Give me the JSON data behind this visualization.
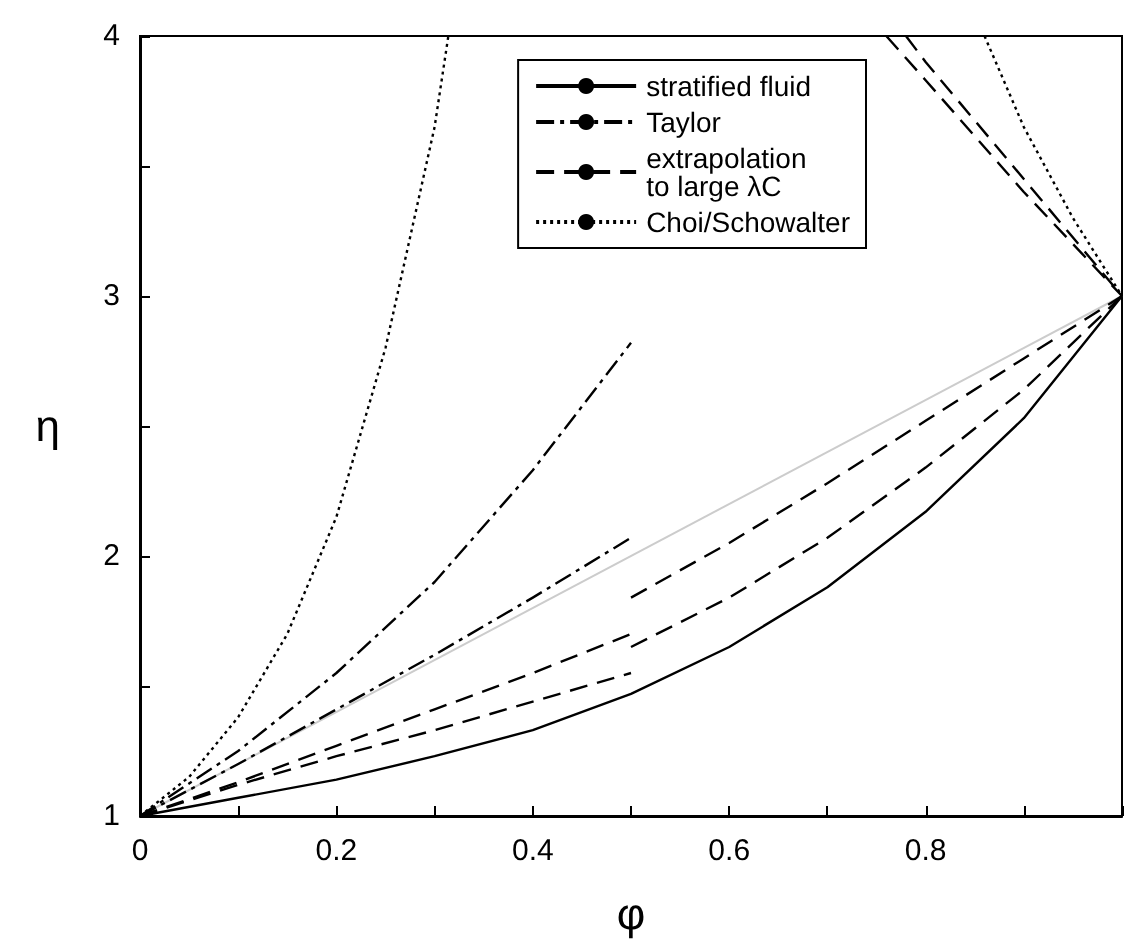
{
  "chart_data": {
    "type": "line",
    "xlabel": "φ",
    "ylabel": "η",
    "xlim": [
      0,
      1
    ],
    "ylim": [
      1,
      4
    ],
    "xticks": [
      0,
      {
        "value": 0.1,
        "label": null
      },
      0.2,
      {
        "value": 0.3,
        "label": null
      },
      0.4,
      {
        "value": 0.5,
        "label": null
      },
      0.6,
      {
        "value": 0.7,
        "label": null
      },
      0.8,
      {
        "value": 0.9,
        "label": null
      },
      {
        "value": 1,
        "label": null
      }
    ],
    "yticks": [
      1,
      {
        "value": 1.5,
        "label": null
      },
      2,
      {
        "value": 2.5,
        "label": null
      },
      3,
      {
        "value": 3.5,
        "label": null
      },
      4
    ],
    "grid": false,
    "legend": "top right",
    "marker": "none",
    "series": [
      {
        "name": "stratified fluid",
        "color": "#000000",
        "line_style": "solid",
        "x": [
          0,
          0.1,
          0.2,
          0.3,
          0.4,
          0.5,
          0.6,
          0.7,
          0.8,
          0.9,
          1
        ],
        "values": [
          1,
          1.07,
          1.14,
          1.23,
          1.33,
          1.47,
          1.65,
          1.88,
          2.17,
          2.53,
          3
        ]
      },
      {
        "name": "Taylor",
        "color": "#000000",
        "line_style": "dashdot",
        "x": [
          0,
          0.1,
          0.2,
          0.3,
          0.4,
          0.5
        ],
        "values": [
          1,
          1.25,
          1.55,
          1.9,
          2.33,
          2.82
        ]
      },
      {
        "color": "#000000",
        "line_style": "dashdot",
        "x": [
          0,
          0.1,
          0.2,
          0.3,
          0.4,
          0.5
        ],
        "values": [
          1,
          1.2,
          1.41,
          1.62,
          1.84,
          2.07
        ]
      },
      {
        "name": "extrapolation\nto large λC",
        "color": "#000000",
        "line_style": "dashed",
        "x": [
          0,
          0.1,
          0.2,
          0.3,
          0.4,
          0.5
        ],
        "values": [
          1,
          1.13,
          1.27,
          1.41,
          1.55,
          1.7
        ]
      },
      {
        "color": "#000000",
        "line_style": "dashed",
        "x": [
          0,
          0.1,
          0.2,
          0.3,
          0.4,
          0.5
        ],
        "values": [
          1,
          1.12,
          1.23,
          1.33,
          1.44,
          1.55
        ]
      },
      {
        "color": "#000000",
        "line_style": "dashed",
        "x": [
          0.5,
          0.6,
          0.7,
          0.8,
          0.9,
          1
        ],
        "values": [
          1.84,
          2.05,
          2.28,
          2.52,
          2.76,
          3
        ]
      },
      {
        "color": "#000000",
        "line_style": "dashed",
        "x": [
          0.5,
          0.6,
          0.7,
          0.8,
          0.9,
          1
        ],
        "values": [
          1.65,
          1.84,
          2.07,
          2.34,
          2.64,
          3
        ]
      },
      {
        "color": "#000000",
        "line_style": "dashed",
        "x": [
          0.78,
          0.8,
          0.9,
          1
        ],
        "values": [
          4,
          3.9,
          3.45,
          3
        ]
      },
      {
        "color": "#000000",
        "line_style": "dashed",
        "x": [
          0.76,
          0.8,
          0.9,
          1
        ],
        "values": [
          4,
          3.83,
          3.4,
          3
        ]
      },
      {
        "name": "Choi/Schowalter",
        "color": "#000000",
        "line_style": "dotted",
        "x": [
          0,
          0.05,
          0.1,
          0.15,
          0.2,
          0.25,
          0.3,
          0.314
        ],
        "values": [
          1,
          1.15,
          1.38,
          1.7,
          2.15,
          2.8,
          3.65,
          4
        ]
      },
      {
        "color": "#000000",
        "line_style": "dotted",
        "x": [
          0.86,
          0.9,
          0.95,
          1
        ],
        "values": [
          4,
          3.65,
          3.3,
          3
        ]
      },
      {
        "color": "#cccccc",
        "line_style": "solid",
        "x": [
          0,
          1
        ],
        "values": [
          1,
          3
        ]
      }
    ]
  }
}
